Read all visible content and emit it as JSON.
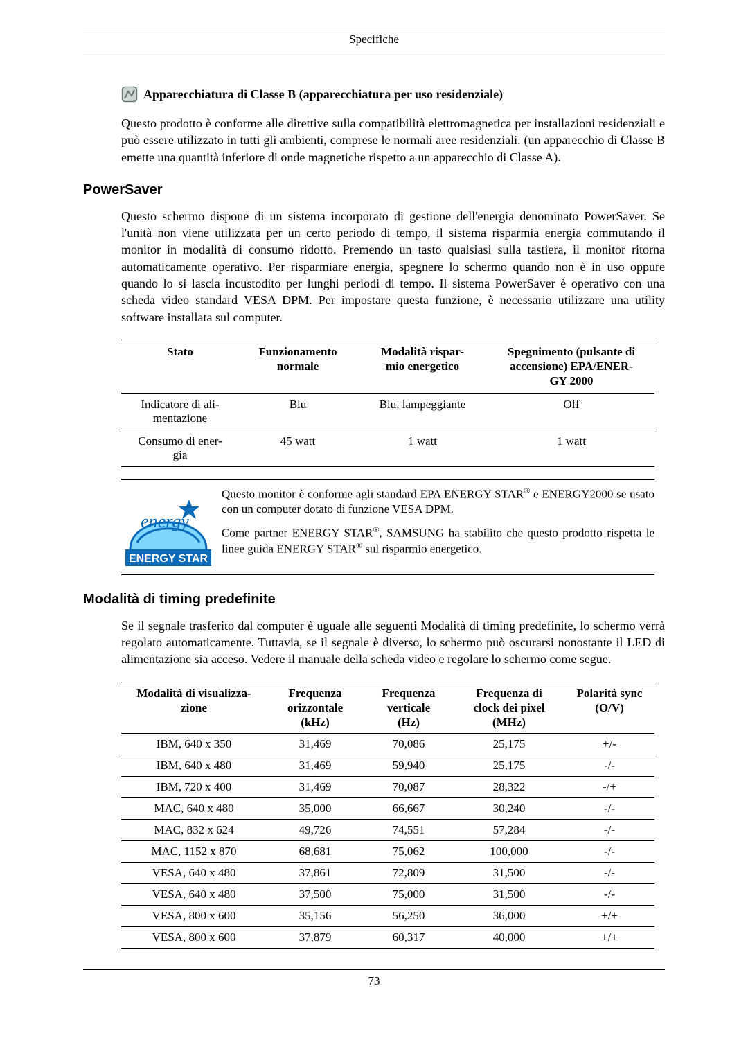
{
  "pageHeader": "Specifiche",
  "pageNumber": "73",
  "classB": {
    "title": "Apparecchiatura di Classe B (apparecchiatura per uso residenziale)",
    "body": "Questo prodotto è conforme alle direttive sulla compatibilità elettromagnetica per installazioni residenziali e può essere utilizzato in tutti gli ambienti, comprese le normali aree residenziali. (un apparecchio di Classe B emette una quantità inferiore di onde magnetiche rispetto a un apparecchio di Classe A)."
  },
  "powerSaver": {
    "heading": "PowerSaver",
    "body": "Questo schermo dispone di un sistema incorporato di gestione dell'energia denominato PowerSaver. Se l'unità non viene utilizzata per un certo periodo di tempo, il sistema risparmia energia commutando il monitor in modalità di consumo ridotto. Premendo un tasto qualsiasi sulla tastiera, il monitor ritorna automaticamente operativo. Per risparmiare energia, spegnere lo schermo quando non è in uso oppure quando lo si lascia incustodito per lunghi periodi di tempo. Il sistema PowerSaver è operativo con una scheda video standard VESA DPM. Per impostare questa funzione, è necessario utilizzare una utility software installata sul computer.",
    "columns": [
      "Stato",
      "Funzionamento normale",
      "Modalità risparmio energetico",
      "Spegnimento (pulsante di accen­sione) EPA/ENERGY 2000"
    ],
    "col0": "Stato",
    "col1a": "Funzionamento",
    "col1b": "normale",
    "col2a": "Modalità rispar-",
    "col2b": "mio energetico",
    "col3a": "Spegnimento (pulsante di",
    "col3b": "accen­sione) EPA/ENER-",
    "col3c": "GY 2000",
    "row1_label_a": "Indicatore di ali-",
    "row1_label_b": "mentazione",
    "row1_v1": "Blu",
    "row1_v2": "Blu, lampeggiante",
    "row1_v3": "Off",
    "row2_label_a": "Consumo di ener-",
    "row2_label_b": "gia",
    "row2_v1": "45 watt",
    "row2_v2": "1 watt",
    "row2_v3": "1 watt"
  },
  "energyStar": {
    "p1_a": "Questo monitor è conforme agli standard EPA ENERGY STAR",
    "p1_b": " e ENERGY2000 se usato con un computer dotato di funzione VESA DPM.",
    "p2_a": "Come partner ENERGY STAR",
    "p2_b": ", SAMSUNG ha stabilito che questo prodotto rispetta le linee guida ENERGY STAR",
    "p2_c": " sul risparmio energetico.",
    "label": "ENERGY STAR",
    "script": "energy",
    "logo_colors": {
      "blue": "#0b6bb8",
      "cyan": "#7fd7ff",
      "white": "#ffffff"
    }
  },
  "timing": {
    "heading": "Modalità di timing predefinite",
    "body": "Se il segnale trasferito dal computer è uguale alle seguenti Modalità di timing predefinite, lo schermo verrà regolato automaticamente. Tuttavia, se il segnale è diverso, lo schermo può oscurarsi nonostante il LED di alimentazione sia acceso. Vedere il manuale della scheda video e regolare lo schermo come segue.",
    "h0a": "Modalità di visualizza-",
    "h0b": "zione",
    "h1a": "Frequenza",
    "h1b": "orizzontale",
    "h1c": "(kHz)",
    "h2a": "Frequenza",
    "h2b": "verticale",
    "h2c": "(Hz)",
    "h3a": "Frequenza di",
    "h3b": "clock dei pixel",
    "h3c": "(MHz)",
    "h4a": "Polarità sync",
    "h4b": "(O/V)",
    "rows": [
      {
        "mode": "IBM, 640 x 350",
        "hf": "31,469",
        "vf": "70,086",
        "pc": "25,175",
        "pol": "+/-"
      },
      {
        "mode": "IBM, 640 x 480",
        "hf": "31,469",
        "vf": "59,940",
        "pc": "25,175",
        "pol": "-/-"
      },
      {
        "mode": "IBM, 720 x 400",
        "hf": "31,469",
        "vf": "70,087",
        "pc": "28,322",
        "pol": "-/+"
      },
      {
        "mode": "MAC, 640 x 480",
        "hf": "35,000",
        "vf": "66,667",
        "pc": "30,240",
        "pol": "-/-"
      },
      {
        "mode": "MAC, 832 x 624",
        "hf": "49,726",
        "vf": "74,551",
        "pc": "57,284",
        "pol": "-/-"
      },
      {
        "mode": "MAC, 1152 x 870",
        "hf": "68,681",
        "vf": "75,062",
        "pc": "100,000",
        "pol": "-/-"
      },
      {
        "mode": "VESA, 640 x 480",
        "hf": "37,861",
        "vf": "72,809",
        "pc": "31,500",
        "pol": "-/-"
      },
      {
        "mode": "VESA, 640 x 480",
        "hf": "37,500",
        "vf": "75,000",
        "pc": "31,500",
        "pol": "-/-"
      },
      {
        "mode": "VESA, 800 x 600",
        "hf": "35,156",
        "vf": "56,250",
        "pc": "36,000",
        "pol": "+/+"
      },
      {
        "mode": "VESA, 800 x 600",
        "hf": "37,879",
        "vf": "60,317",
        "pc": "40,000",
        "pol": "+/+"
      }
    ]
  },
  "colors": {
    "text": "#000000",
    "bg": "#ffffff",
    "rule": "#000000"
  },
  "icon": {
    "stroke": "#6b7a77",
    "fill": "#cfd8d6"
  }
}
